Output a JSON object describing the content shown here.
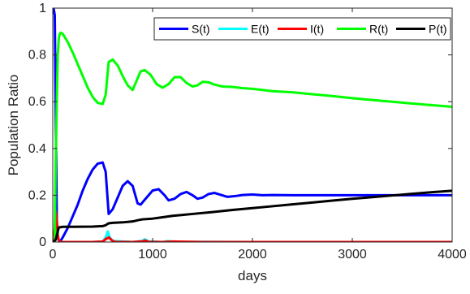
{
  "chart_data": {
    "type": "line",
    "title": "",
    "xlabel": "days",
    "ylabel": "Population Ratio",
    "xlim": [
      0,
      4000
    ],
    "ylim": [
      0,
      1
    ],
    "xticks": [
      0,
      1000,
      2000,
      3000,
      4000
    ],
    "xtick_labels": [
      "0",
      "1000",
      "2000",
      "3000",
      "4000"
    ],
    "yticks": [
      0,
      0.2,
      0.4,
      0.6,
      0.8,
      1
    ],
    "ytick_labels": [
      "0",
      "0.2",
      "0.4",
      "0.6",
      "0.8",
      "1"
    ],
    "grid": false,
    "legend_position": "top-right",
    "series": [
      {
        "name": "S(t)",
        "color": "#0000ff",
        "x": [
          0,
          10,
          20,
          30,
          40,
          50,
          60,
          80,
          100,
          150,
          200,
          250,
          300,
          350,
          400,
          450,
          500,
          530,
          560,
          600,
          650,
          700,
          750,
          800,
          850,
          880,
          920,
          1000,
          1060,
          1120,
          1160,
          1220,
          1280,
          1340,
          1400,
          1450,
          1500,
          1560,
          1620,
          1680,
          1750,
          1820,
          1900,
          2000,
          2100,
          2200,
          2400,
          2600,
          2800,
          3000,
          3200,
          3400,
          3600,
          3800,
          4000
        ],
        "y": [
          1.0,
          0.995,
          0.97,
          0.55,
          0.1,
          0.02,
          0.005,
          0.006,
          0.02,
          0.06,
          0.11,
          0.16,
          0.22,
          0.27,
          0.31,
          0.335,
          0.34,
          0.3,
          0.12,
          0.14,
          0.19,
          0.24,
          0.26,
          0.24,
          0.165,
          0.16,
          0.18,
          0.22,
          0.226,
          0.2,
          0.178,
          0.185,
          0.205,
          0.214,
          0.2,
          0.185,
          0.19,
          0.205,
          0.21,
          0.202,
          0.193,
          0.196,
          0.201,
          0.203,
          0.2,
          0.201,
          0.2,
          0.2,
          0.2,
          0.2,
          0.2,
          0.2,
          0.2,
          0.2,
          0.2
        ]
      },
      {
        "name": "E(t)",
        "color": "#00ffff",
        "x": [
          0,
          10,
          20,
          30,
          40,
          50,
          60,
          80,
          100,
          200,
          400,
          500,
          530,
          550,
          570,
          600,
          800,
          900,
          920,
          960,
          1100,
          1150,
          1200,
          1300,
          1500,
          2000,
          3000,
          4000
        ],
        "y": [
          0.0,
          0.005,
          0.05,
          0.08,
          0.06,
          0.02,
          0.005,
          0.001,
          0.0,
          0.0,
          0.0,
          0.002,
          0.02,
          0.045,
          0.02,
          0.005,
          0.0,
          0.005,
          0.012,
          0.003,
          0.0,
          0.004,
          0.002,
          0.0,
          0.001,
          0.0,
          0.0,
          0.0
        ]
      },
      {
        "name": "I(t)",
        "color": "#ff0000",
        "x": [
          0,
          10,
          20,
          30,
          40,
          50,
          60,
          70,
          90,
          120,
          200,
          400,
          500,
          530,
          560,
          590,
          620,
          800,
          900,
          930,
          960,
          1100,
          1200,
          1500,
          2000,
          3000,
          4000
        ],
        "y": [
          0.0,
          0.01,
          0.06,
          0.13,
          0.09,
          0.03,
          0.008,
          0.002,
          0.0,
          0.0,
          0.0,
          0.0,
          0.002,
          0.012,
          0.02,
          0.008,
          0.001,
          0.0,
          0.003,
          0.006,
          0.001,
          0.0,
          0.002,
          0.0,
          0.0,
          0.0,
          0.0
        ]
      },
      {
        "name": "R(t)",
        "color": "#00ff00",
        "x": [
          0,
          20,
          30,
          40,
          50,
          60,
          70,
          80,
          100,
          150,
          200,
          250,
          300,
          350,
          400,
          450,
          500,
          530,
          560,
          600,
          650,
          700,
          750,
          800,
          850,
          880,
          920,
          980,
          1040,
          1100,
          1160,
          1220,
          1280,
          1340,
          1400,
          1450,
          1500,
          1560,
          1620,
          1700,
          1800,
          1900,
          2000,
          2100,
          2200,
          2400,
          2600,
          2800,
          3000,
          3200,
          3400,
          3600,
          3800,
          4000
        ],
        "y": [
          0.0,
          0.0,
          0.35,
          0.6,
          0.8,
          0.87,
          0.89,
          0.895,
          0.89,
          0.855,
          0.81,
          0.76,
          0.71,
          0.66,
          0.62,
          0.595,
          0.59,
          0.63,
          0.77,
          0.78,
          0.755,
          0.71,
          0.67,
          0.65,
          0.7,
          0.73,
          0.735,
          0.715,
          0.675,
          0.66,
          0.675,
          0.705,
          0.705,
          0.68,
          0.665,
          0.67,
          0.685,
          0.683,
          0.673,
          0.665,
          0.663,
          0.658,
          0.655,
          0.65,
          0.645,
          0.64,
          0.632,
          0.624,
          0.615,
          0.607,
          0.6,
          0.592,
          0.585,
          0.578
        ]
      },
      {
        "name": "P(t)",
        "color": "#000000",
        "x": [
          0,
          30,
          60,
          100,
          200,
          400,
          500,
          530,
          560,
          600,
          700,
          800,
          860,
          900,
          1000,
          1100,
          1200,
          1300,
          1400,
          1600,
          1800,
          2000,
          2200,
          2400,
          2600,
          2800,
          3000,
          3200,
          3400,
          3600,
          3800,
          4000
        ],
        "y": [
          0.0,
          0.01,
          0.062,
          0.065,
          0.065,
          0.066,
          0.068,
          0.072,
          0.08,
          0.082,
          0.084,
          0.088,
          0.094,
          0.097,
          0.1,
          0.106,
          0.112,
          0.116,
          0.12,
          0.128,
          0.137,
          0.145,
          0.153,
          0.161,
          0.169,
          0.177,
          0.185,
          0.192,
          0.199,
          0.206,
          0.213,
          0.219
        ]
      }
    ]
  }
}
